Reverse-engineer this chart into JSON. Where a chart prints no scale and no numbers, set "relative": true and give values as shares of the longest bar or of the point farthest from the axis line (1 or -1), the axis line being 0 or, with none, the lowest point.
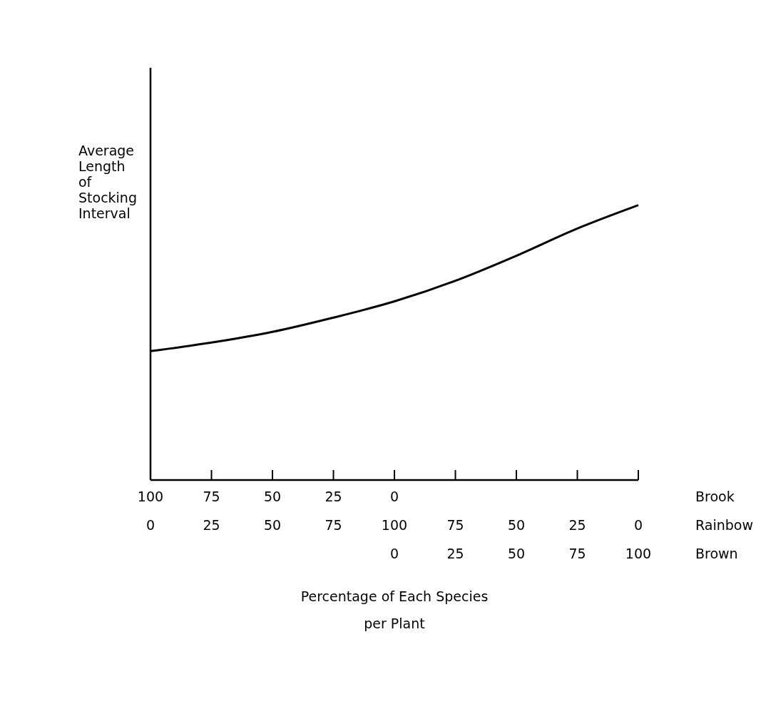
{
  "chart_data": {
    "type": "line",
    "relative": true,
    "xlabel": "Percentage of Each Species\nper Plant",
    "ylabel": "Average\nLength\nof\nStocking\nInterval",
    "categories": [
      "0",
      "25",
      "50",
      "75",
      "100",
      "75",
      "50",
      "25",
      "0"
    ],
    "series": [
      {
        "color": "#000000",
        "values": [
          0.469,
          0.5,
          0.539,
          0.591,
          0.65,
          0.725,
          0.816,
          0.915,
          1
        ]
      }
    ],
    "annotations": [
      "100 75 50 25 0",
      "0 25 50 75 100",
      "Brook",
      "Rainbow",
      "Brown"
    ],
    "grid": false,
    "legend": false,
    "marker": "none",
    "line_style": "solid"
  }
}
